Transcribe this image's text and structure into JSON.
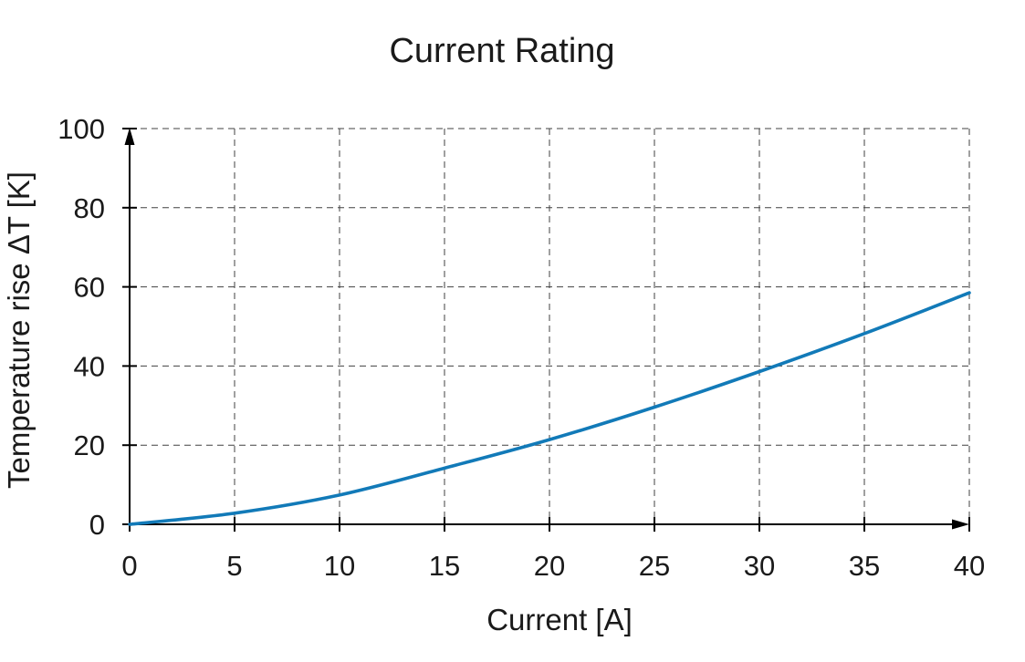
{
  "chart_data": {
    "type": "line",
    "title": "Current Rating",
    "xlabel": "Current [A]",
    "ylabel": "Temperature rise ΔT [K]",
    "x": [
      0,
      5,
      10,
      15,
      20,
      25,
      30,
      35,
      40
    ],
    "series": [
      {
        "name": "Temperature rise",
        "values": [
          0,
          2.8,
          7.4,
          14.2,
          21.4,
          29.6,
          38.6,
          48.2,
          58.5
        ]
      }
    ],
    "xlim": [
      0,
      40
    ],
    "ylim": [
      0,
      100
    ],
    "x_ticks": [
      0,
      5,
      10,
      15,
      20,
      25,
      30,
      35,
      40
    ],
    "y_ticks": [
      0,
      20,
      40,
      60,
      80,
      100
    ],
    "grid": "dashed",
    "legend": "none",
    "line_color": "#127ab8",
    "grid_color": "#404040",
    "axis_color": "#000000",
    "text_color": "#1a1a1a"
  }
}
